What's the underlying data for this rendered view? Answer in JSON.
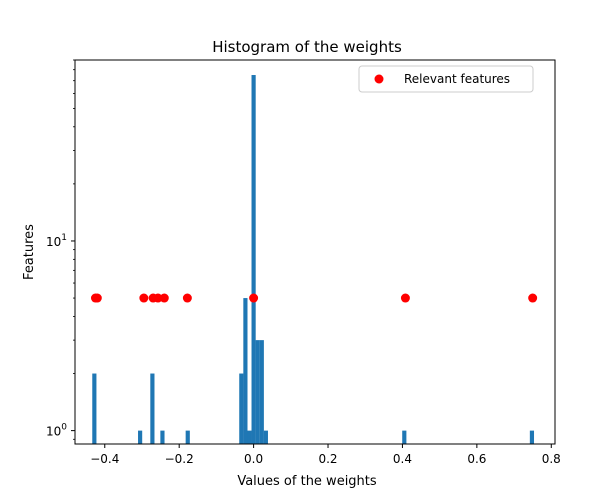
{
  "chart_data": {
    "type": "bar",
    "title": "Histogram of the weights",
    "xlabel": "Values of the weights",
    "ylabel": "Features",
    "y_scale": "log",
    "xlim": [
      -0.48,
      0.81
    ],
    "ylim": [
      0.85,
      90
    ],
    "x_ticks": [
      {
        "value": -0.4,
        "label": "−0.4"
      },
      {
        "value": -0.2,
        "label": "−0.2"
      },
      {
        "value": 0.0,
        "label": "0.0"
      },
      {
        "value": 0.2,
        "label": "0.2"
      },
      {
        "value": 0.4,
        "label": "0.4"
      },
      {
        "value": 0.6,
        "label": "0.6"
      },
      {
        "value": 0.8,
        "label": "0.8"
      }
    ],
    "y_ticks": [
      {
        "value": 1,
        "base": "10",
        "exp": "0"
      },
      {
        "value": 10,
        "base": "10",
        "exp": "1"
      }
    ],
    "bin_width": 0.0112,
    "bars": [
      {
        "x": -0.428,
        "count": 2
      },
      {
        "x": -0.305,
        "count": 1
      },
      {
        "x": -0.272,
        "count": 2
      },
      {
        "x": -0.245,
        "count": 1
      },
      {
        "x": -0.177,
        "count": 1
      },
      {
        "x": -0.033,
        "count": 2
      },
      {
        "x": -0.022,
        "count": 5
      },
      {
        "x": -0.011,
        "count": 1
      },
      {
        "x": 0.0,
        "count": 75
      },
      {
        "x": 0.011,
        "count": 3
      },
      {
        "x": 0.022,
        "count": 3
      },
      {
        "x": 0.033,
        "count": 1
      },
      {
        "x": 0.405,
        "count": 1
      },
      {
        "x": 0.748,
        "count": 1
      }
    ],
    "bar_color": "#1f77b4",
    "series": [
      {
        "name": "Relevant features",
        "color": "#ff0000",
        "points": [
          {
            "x": -0.425,
            "y": 5
          },
          {
            "x": -0.42,
            "y": 5
          },
          {
            "x": -0.295,
            "y": 5
          },
          {
            "x": -0.27,
            "y": 5
          },
          {
            "x": -0.257,
            "y": 5
          },
          {
            "x": -0.24,
            "y": 5
          },
          {
            "x": -0.178,
            "y": 5
          },
          {
            "x": 0.0,
            "y": 5
          },
          {
            "x": 0.408,
            "y": 5
          },
          {
            "x": 0.75,
            "y": 5
          }
        ]
      }
    ],
    "legend_position": "top-right",
    "grid": false
  }
}
